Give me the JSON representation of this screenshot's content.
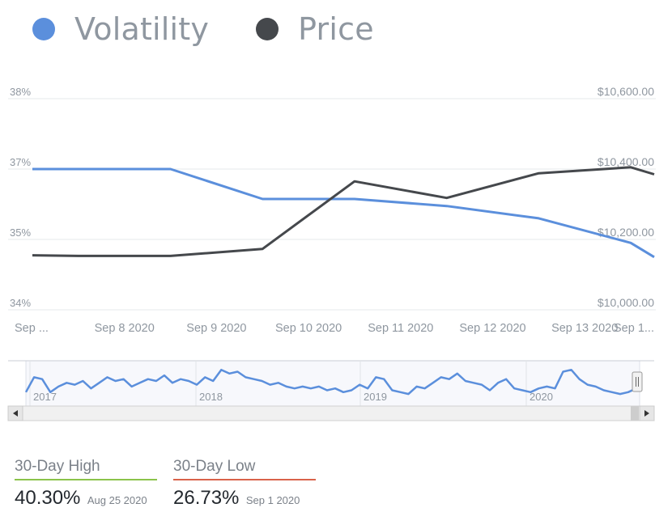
{
  "legend": {
    "items": [
      {
        "label": "Volatility",
        "color": "#5b8fdc",
        "icon": "circle-dot"
      },
      {
        "label": "Price",
        "color": "#45484c",
        "icon": "circle-dot"
      }
    ]
  },
  "chart_data": {
    "type": "line",
    "x_labels": [
      "Sep ...",
      "Sep 8 2020",
      "Sep 9 2020",
      "Sep 10 2020",
      "Sep 11 2020",
      "Sep 12 2020",
      "Sep 13 2020",
      "Sep 1..."
    ],
    "left_axis": {
      "ticks": [
        "38%",
        "37%",
        "35%",
        "34%"
      ],
      "range": [
        34,
        38
      ]
    },
    "right_axis": {
      "ticks": [
        "$10,600.00",
        "$10,400.00",
        "$10,200.00",
        "$10,000.00"
      ],
      "range": [
        10000,
        10600
      ]
    },
    "x": [
      7.0,
      7.5,
      8.5,
      9.5,
      10.5,
      11.5,
      12.5,
      13.5,
      14.5
    ],
    "series": [
      {
        "name": "Volatility",
        "color": "#5b8fdc",
        "values": [
          37.0,
          37.0,
          37.0,
          36.15,
          36.15,
          35.95,
          35.6,
          34.95,
          34.75
        ]
      },
      {
        "name": "Price",
        "color": "#45484c",
        "values": [
          10155,
          10153,
          10153,
          10173,
          10365,
          10318,
          10388,
          10405,
          10385
        ]
      }
    ],
    "grid": true,
    "legend_position": "top-left"
  },
  "navigator": {
    "year_labels": [
      "2017",
      "2018",
      "2019",
      "2020"
    ],
    "series_color": "#5b8fdc",
    "overview_values": [
      20,
      60,
      55,
      20,
      35,
      45,
      40,
      50,
      30,
      45,
      60,
      50,
      55,
      35,
      45,
      55,
      50,
      65,
      45,
      55,
      50,
      40,
      60,
      50,
      80,
      70,
      75,
      60,
      55,
      50,
      40,
      45,
      35,
      30,
      35,
      30,
      35,
      25,
      30,
      20,
      25,
      40,
      30,
      60,
      55,
      25,
      20,
      15,
      35,
      30,
      45,
      60,
      55,
      70,
      50,
      45,
      40,
      25,
      45,
      55,
      30,
      25,
      20,
      30,
      35,
      30,
      75,
      80,
      55,
      40,
      35,
      25,
      20,
      15,
      20,
      30
    ]
  },
  "stats": [
    {
      "title": "30-Day High",
      "value": "40.30%",
      "date": "Aug 25 2020",
      "accent": "#8bc34a"
    },
    {
      "title": "30-Day Low",
      "value": "26.73%",
      "date": "Sep 1 2020",
      "accent": "#d9624a"
    }
  ]
}
